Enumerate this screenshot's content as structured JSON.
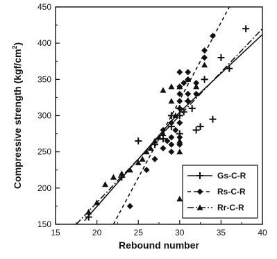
{
  "chart_data": {
    "type": "scatter",
    "title": "",
    "xlabel": "Rebound number",
    "ylabel_main": "Compressive strength (kgf/cm",
    "ylabel_sup": "2",
    "ylabel_close": ")",
    "xlim": [
      15,
      40
    ],
    "ylim": [
      150,
      450
    ],
    "xticks": [
      15,
      20,
      25,
      30,
      35,
      40
    ],
    "yticks": [
      150,
      200,
      250,
      300,
      350,
      400,
      450
    ],
    "xtick_labels": [
      "15",
      "20",
      "25",
      "30",
      "35",
      "40"
    ],
    "ytick_labels": [
      "150",
      "200",
      "250",
      "300",
      "350",
      "400",
      "450"
    ],
    "grid": false,
    "legend_position": "bottom-right",
    "series": [
      {
        "name": "Gs-C-R",
        "marker": "plus",
        "line_style": "solid",
        "fit": [
          [
            18.5,
            155
          ],
          [
            29.6,
            300
          ],
          [
            30.3,
            308
          ],
          [
            40,
            412
          ]
        ],
        "points": [
          [
            19,
            160
          ],
          [
            23,
            215
          ],
          [
            25,
            265
          ],
          [
            27,
            260
          ],
          [
            28,
            268
          ],
          [
            29,
            285
          ],
          [
            30,
            300
          ],
          [
            30,
            310
          ],
          [
            30.5,
            305
          ],
          [
            31,
            320
          ],
          [
            31.5,
            310
          ],
          [
            32,
            280
          ],
          [
            32.5,
            285
          ],
          [
            33,
            350
          ],
          [
            34,
            295
          ],
          [
            35,
            380
          ],
          [
            36,
            365
          ],
          [
            38,
            420
          ],
          [
            30,
            275
          ],
          [
            29,
            300
          ]
        ]
      },
      {
        "name": "Rs-C-R",
        "marker": "diamond",
        "line_style": "dash",
        "fit": [
          [
            22,
            150
          ],
          [
            36,
            450
          ]
        ],
        "points": [
          [
            24,
            175
          ],
          [
            26,
            225
          ],
          [
            27,
            240
          ],
          [
            28,
            255
          ],
          [
            28.5,
            265
          ],
          [
            29,
            250
          ],
          [
            29,
            260
          ],
          [
            29,
            270
          ],
          [
            29.5,
            280
          ],
          [
            30,
            260
          ],
          [
            30,
            270
          ],
          [
            30,
            290
          ],
          [
            30,
            310
          ],
          [
            30,
            320
          ],
          [
            30,
            330
          ],
          [
            30,
            340
          ],
          [
            30,
            360
          ],
          [
            30.5,
            345
          ],
          [
            31,
            320
          ],
          [
            31,
            330
          ],
          [
            31,
            350
          ],
          [
            31,
            360
          ],
          [
            32,
            330
          ],
          [
            32,
            345
          ],
          [
            33,
            380
          ],
          [
            33,
            390
          ],
          [
            34,
            410
          ],
          [
            29,
            290
          ],
          [
            28,
            280
          ]
        ]
      },
      {
        "name": "Rr-C-R",
        "marker": "triangle",
        "line_style": "dashdot",
        "fit": [
          [
            17.5,
            150
          ],
          [
            40,
            420
          ]
        ],
        "points": [
          [
            19,
            167
          ],
          [
            20,
            180
          ],
          [
            21,
            205
          ],
          [
            22,
            215
          ],
          [
            23,
            220
          ],
          [
            24,
            225
          ],
          [
            25,
            235
          ],
          [
            25.5,
            240
          ],
          [
            26,
            250
          ],
          [
            26.5,
            255
          ],
          [
            27,
            265
          ],
          [
            27.5,
            270
          ],
          [
            28,
            275
          ],
          [
            28,
            335
          ],
          [
            29,
            340
          ],
          [
            29,
            320
          ],
          [
            30,
            185
          ],
          [
            30,
            250
          ],
          [
            30,
            265
          ],
          [
            30,
            340
          ],
          [
            31,
            350
          ],
          [
            32,
            340
          ],
          [
            33,
            370
          ],
          [
            29.5,
            300
          ]
        ]
      }
    ]
  }
}
